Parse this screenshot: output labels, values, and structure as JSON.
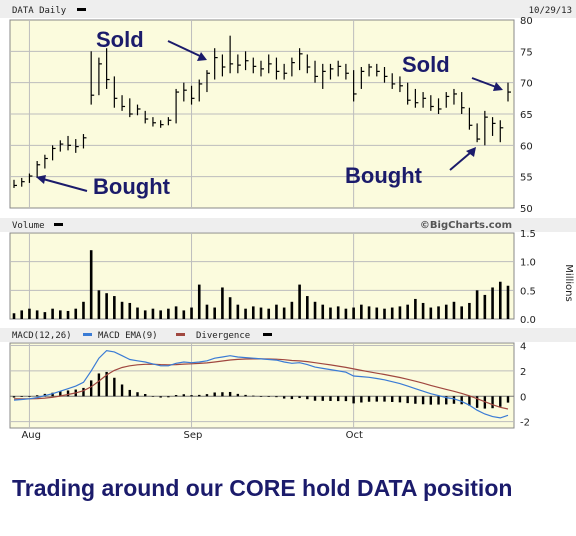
{
  "header": {
    "title": "DATA Daily",
    "date": "10/29/13",
    "watermark": "©BigCharts.com"
  },
  "caption": "Trading around our CORE hold DATA position",
  "colors": {
    "panel_bg": "#fbfbdd",
    "grid": "#bdbdbd",
    "bar": "#000000",
    "macd": "#3a7bd5",
    "ema": "#a0473f",
    "annotation": "#1b1b6b"
  },
  "annotations": [
    {
      "name": "bought-label-1",
      "text": "Bought"
    },
    {
      "name": "sold-label-1",
      "text": "Sold"
    },
    {
      "name": "sold-label-2",
      "text": "Sold"
    },
    {
      "name": "bought-label-2",
      "text": "Bought"
    }
  ],
  "chart_data": [
    {
      "type": "ohlc",
      "panel": "price",
      "title": "DATA Daily",
      "ylim": [
        50,
        80
      ],
      "yticks": [
        50,
        55,
        60,
        65,
        70,
        75,
        80
      ],
      "xticks": [
        {
          "label": "Aug",
          "index": 2
        },
        {
          "label": "Sep",
          "index": 23
        },
        {
          "label": "Oct",
          "index": 44
        }
      ],
      "grid": true,
      "series": [
        {
          "name": "DATA",
          "values": [
            {
              "h": 54.5,
              "l": 53.2,
              "c": 53.6
            },
            {
              "h": 54.8,
              "l": 53.4,
              "c": 54.2
            },
            {
              "h": 55.5,
              "l": 54.0,
              "c": 55.1
            },
            {
              "h": 57.5,
              "l": 54.8,
              "c": 56.9
            },
            {
              "h": 58.5,
              "l": 56.3,
              "c": 57.9
            },
            {
              "h": 60.0,
              "l": 57.6,
              "c": 59.5
            },
            {
              "h": 60.8,
              "l": 59.0,
              "c": 60.2
            },
            {
              "h": 61.5,
              "l": 59.2,
              "c": 60.0
            },
            {
              "h": 61.0,
              "l": 58.8,
              "c": 59.8
            },
            {
              "h": 61.8,
              "l": 59.5,
              "c": 61.2
            },
            {
              "h": 75.0,
              "l": 66.5,
              "c": 68.0
            },
            {
              "h": 74.0,
              "l": 68.0,
              "c": 73.0
            },
            {
              "h": 75.5,
              "l": 69.0,
              "c": 70.5
            },
            {
              "h": 71.0,
              "l": 66.0,
              "c": 67.5
            },
            {
              "h": 68.0,
              "l": 65.5,
              "c": 66.2
            },
            {
              "h": 67.5,
              "l": 64.5,
              "c": 65.0
            },
            {
              "h": 66.5,
              "l": 64.8,
              "c": 65.8
            },
            {
              "h": 65.5,
              "l": 63.5,
              "c": 64.2
            },
            {
              "h": 64.5,
              "l": 63.0,
              "c": 63.6
            },
            {
              "h": 64.0,
              "l": 62.8,
              "c": 63.3
            },
            {
              "h": 64.5,
              "l": 63.2,
              "c": 64.0
            },
            {
              "h": 69.0,
              "l": 63.5,
              "c": 68.5
            },
            {
              "h": 70.0,
              "l": 67.0,
              "c": 68.8
            },
            {
              "h": 69.5,
              "l": 66.5,
              "c": 67.5
            },
            {
              "h": 70.5,
              "l": 67.0,
              "c": 69.8
            },
            {
              "h": 72.0,
              "l": 68.5,
              "c": 71.5
            },
            {
              "h": 75.5,
              "l": 70.5,
              "c": 74.0
            },
            {
              "h": 74.5,
              "l": 71.0,
              "c": 72.5
            },
            {
              "h": 77.5,
              "l": 71.5,
              "c": 73.0
            },
            {
              "h": 74.5,
              "l": 71.5,
              "c": 72.8
            },
            {
              "h": 75.0,
              "l": 72.0,
              "c": 73.5
            },
            {
              "h": 74.0,
              "l": 71.5,
              "c": 72.6
            },
            {
              "h": 73.5,
              "l": 71.0,
              "c": 72.2
            },
            {
              "h": 74.5,
              "l": 71.5,
              "c": 73.0
            },
            {
              "h": 74.0,
              "l": 70.5,
              "c": 71.8
            },
            {
              "h": 73.0,
              "l": 70.5,
              "c": 71.5
            },
            {
              "h": 74.0,
              "l": 71.0,
              "c": 73.2
            },
            {
              "h": 75.5,
              "l": 72.0,
              "c": 74.6
            },
            {
              "h": 74.5,
              "l": 71.5,
              "c": 72.5
            },
            {
              "h": 73.5,
              "l": 70.0,
              "c": 71.0
            },
            {
              "h": 73.0,
              "l": 69.0,
              "c": 71.8
            },
            {
              "h": 73.0,
              "l": 70.5,
              "c": 72.2
            },
            {
              "h": 73.5,
              "l": 71.0,
              "c": 72.6
            },
            {
              "h": 73.0,
              "l": 70.5,
              "c": 71.5
            },
            {
              "h": 72.0,
              "l": 67.0,
              "c": 68.2
            },
            {
              "h": 72.5,
              "l": 69.0,
              "c": 71.8
            },
            {
              "h": 73.0,
              "l": 71.0,
              "c": 72.5
            },
            {
              "h": 73.0,
              "l": 71.0,
              "c": 71.8
            },
            {
              "h": 72.5,
              "l": 70.0,
              "c": 71.0
            },
            {
              "h": 71.5,
              "l": 69.0,
              "c": 69.8
            },
            {
              "h": 71.0,
              "l": 68.5,
              "c": 69.5
            },
            {
              "h": 70.0,
              "l": 66.5,
              "c": 67.2
            },
            {
              "h": 69.0,
              "l": 66.0,
              "c": 66.8
            },
            {
              "h": 68.5,
              "l": 66.0,
              "c": 67.5
            },
            {
              "h": 68.0,
              "l": 65.5,
              "c": 66.2
            },
            {
              "h": 67.5,
              "l": 65.0,
              "c": 65.8
            },
            {
              "h": 68.5,
              "l": 66.0,
              "c": 67.8
            },
            {
              "h": 69.0,
              "l": 66.5,
              "c": 68.2
            },
            {
              "h": 68.5,
              "l": 65.0,
              "c": 66.0
            },
            {
              "h": 66.0,
              "l": 62.5,
              "c": 63.2
            },
            {
              "h": 63.5,
              "l": 60.5,
              "c": 61.0
            },
            {
              "h": 65.5,
              "l": 60.0,
              "c": 64.5
            },
            {
              "h": 64.5,
              "l": 61.5,
              "c": 63.5
            },
            {
              "h": 64.0,
              "l": 60.5,
              "c": 62.8
            },
            {
              "h": 70.0,
              "l": 67.0,
              "c": 68.5
            }
          ]
        }
      ]
    },
    {
      "type": "bar",
      "panel": "volume",
      "title": "Volume",
      "ylabel": "Millions",
      "ylim": [
        0,
        1.5
      ],
      "yticks": [
        0.0,
        0.5,
        1.0,
        1.5
      ],
      "series": [
        {
          "name": "Volume",
          "values": [
            0.1,
            0.15,
            0.18,
            0.15,
            0.12,
            0.18,
            0.15,
            0.14,
            0.18,
            0.3,
            1.2,
            0.5,
            0.45,
            0.4,
            0.3,
            0.28,
            0.2,
            0.15,
            0.18,
            0.15,
            0.18,
            0.22,
            0.15,
            0.2,
            0.6,
            0.25,
            0.2,
            0.55,
            0.38,
            0.25,
            0.18,
            0.22,
            0.2,
            0.18,
            0.25,
            0.2,
            0.3,
            0.6,
            0.4,
            0.3,
            0.25,
            0.2,
            0.22,
            0.18,
            0.2,
            0.25,
            0.22,
            0.2,
            0.18,
            0.2,
            0.22,
            0.25,
            0.35,
            0.28,
            0.2,
            0.22,
            0.25,
            0.3,
            0.22,
            0.28,
            0.5,
            0.42,
            0.55,
            0.65,
            0.58
          ]
        }
      ]
    },
    {
      "type": "line",
      "panel": "macd",
      "title": "MACD(12,26)",
      "ylim": [
        -2.5,
        4.2
      ],
      "yticks": [
        -2,
        0,
        2,
        4
      ],
      "series": [
        {
          "name": "MACD(12,26)",
          "values": [
            -0.3,
            -0.25,
            -0.2,
            -0.1,
            0.05,
            0.2,
            0.4,
            0.6,
            0.8,
            1.1,
            2.0,
            3.0,
            3.6,
            3.5,
            3.2,
            2.9,
            2.8,
            2.7,
            2.55,
            2.4,
            2.4,
            2.6,
            2.7,
            2.65,
            2.7,
            2.8,
            3.0,
            3.1,
            3.2,
            3.1,
            3.05,
            3.0,
            2.95,
            2.9,
            2.85,
            2.7,
            2.6,
            2.65,
            2.5,
            2.3,
            2.2,
            2.1,
            2.0,
            1.9,
            1.6,
            1.55,
            1.5,
            1.4,
            1.3,
            1.15,
            1.0,
            0.8,
            0.6,
            0.4,
            0.2,
            0.05,
            -0.1,
            -0.2,
            -0.4,
            -0.7,
            -1.1,
            -1.4,
            -1.6,
            -1.7,
            -1.5
          ]
        },
        {
          "name": "MACD EMA(9)",
          "values": [
            -0.2,
            -0.2,
            -0.2,
            -0.18,
            -0.14,
            -0.08,
            0.02,
            0.14,
            0.27,
            0.44,
            0.75,
            1.2,
            1.68,
            2.04,
            2.27,
            2.4,
            2.48,
            2.52,
            2.53,
            2.5,
            2.48,
            2.5,
            2.54,
            2.56,
            2.59,
            2.63,
            2.7,
            2.78,
            2.86,
            2.91,
            2.94,
            2.95,
            2.95,
            2.94,
            2.92,
            2.88,
            2.82,
            2.79,
            2.73,
            2.65,
            2.56,
            2.47,
            2.38,
            2.28,
            2.16,
            2.04,
            1.93,
            1.82,
            1.72,
            1.6,
            1.48,
            1.34,
            1.19,
            1.03,
            0.86,
            0.7,
            0.54,
            0.39,
            0.23,
            0.04,
            -0.19,
            -0.43,
            -0.66,
            -0.87,
            -1.0
          ]
        },
        {
          "name": "Divergence",
          "values": [
            -0.1,
            -0.05,
            0.0,
            0.08,
            0.19,
            0.28,
            0.38,
            0.46,
            0.53,
            0.66,
            1.25,
            1.8,
            1.92,
            1.46,
            0.93,
            0.5,
            0.32,
            0.18,
            0.02,
            -0.1,
            -0.08,
            0.1,
            0.16,
            0.09,
            0.11,
            0.17,
            0.3,
            0.32,
            0.34,
            0.19,
            0.11,
            0.05,
            0.0,
            -0.04,
            -0.07,
            -0.18,
            -0.22,
            -0.14,
            -0.23,
            -0.35,
            -0.36,
            -0.37,
            -0.38,
            -0.38,
            -0.56,
            -0.49,
            -0.43,
            -0.42,
            -0.42,
            -0.45,
            -0.48,
            -0.54,
            -0.59,
            -0.63,
            -0.66,
            -0.65,
            -0.64,
            -0.59,
            -0.63,
            -0.74,
            -0.91,
            -0.97,
            -0.94,
            -0.83,
            -0.5
          ]
        }
      ]
    }
  ]
}
